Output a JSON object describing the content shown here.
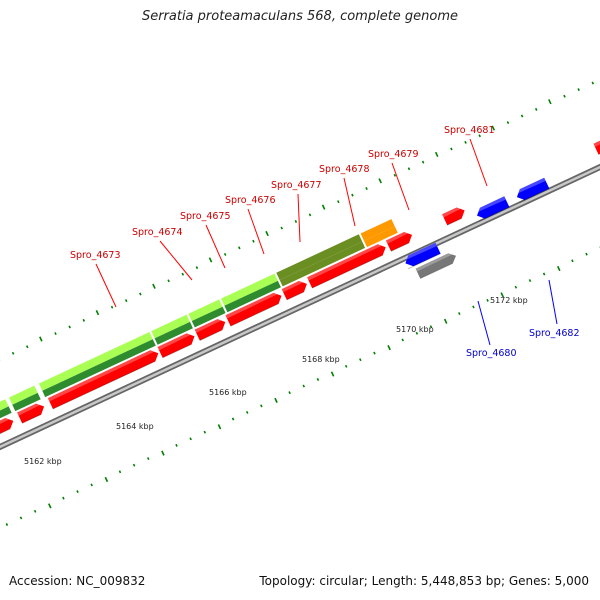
{
  "title": "Serratia proteamaculans 568, complete genome",
  "accession_text": "Accession: NC_009832",
  "summary_text": "Topology: circular; Length: 5,448,853 bp; Genes: 5,000",
  "colors": {
    "forward_gene": "#ff0000",
    "reverse_gene": "#0000ff",
    "other_feature": "#777777",
    "backbone": "#999999",
    "tick_mark": "#008000",
    "light_band": "#aaff55",
    "dark_band": "#2e8b2e",
    "olive_band": "#6b8e23",
    "orange_band": "#ff9900"
  },
  "scale_labels": [
    "5162 kbp",
    "5164 kbp",
    "5166 kbp",
    "5168 kbp",
    "5170 kbp",
    "5172 kbp"
  ],
  "genes": [
    {
      "name": "Spro_4673",
      "strand": "forward"
    },
    {
      "name": "Spro_4674",
      "strand": "forward"
    },
    {
      "name": "Spro_4675",
      "strand": "forward"
    },
    {
      "name": "Spro_4676",
      "strand": "forward"
    },
    {
      "name": "Spro_4677",
      "strand": "forward"
    },
    {
      "name": "Spro_4678",
      "strand": "forward"
    },
    {
      "name": "Spro_4679",
      "strand": "forward"
    },
    {
      "name": "Spro_4680",
      "strand": "reverse"
    },
    {
      "name": "Spro_4681",
      "strand": "forward"
    },
    {
      "name": "Spro_4682",
      "strand": "reverse"
    }
  ]
}
